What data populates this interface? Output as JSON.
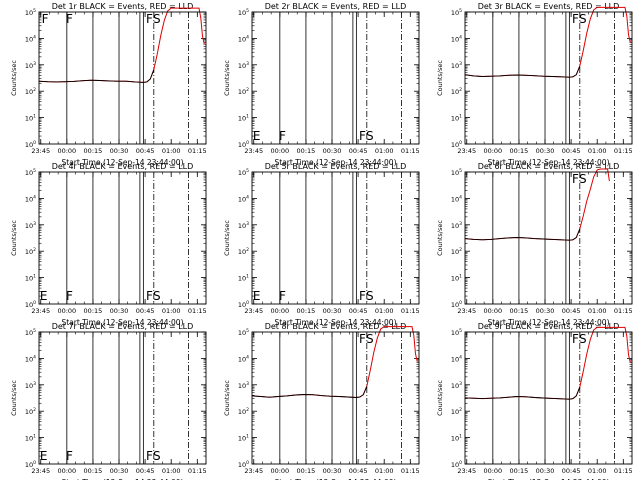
{
  "figure": {
    "xlabel": "Start Time (12-Sep-14 23:44:00)",
    "ylabel": "Counts/sec",
    "x_tick_labels": [
      "23:45",
      "00:00",
      "00:15",
      "00:30",
      "00:45",
      "01:00",
      "01:15"
    ],
    "event_colors": {
      "events": "#000000",
      "lld": "#dd0000"
    }
  },
  "chart_data": [
    {
      "type": "line",
      "title": "Det 1r BLACK = Events, RED = LLD",
      "x_unit": "minutes since 23:44:00",
      "xlim": [
        0,
        96
      ],
      "ylim_exp": [
        0,
        5
      ],
      "y_scale": "log",
      "y_tick_labels": [
        "10^0",
        "10^1",
        "10^2",
        "10^3",
        "10^4",
        "10^5"
      ],
      "has_data": true,
      "series": [
        {
          "name": "LLD",
          "x": [
            0,
            5,
            10,
            15,
            20,
            25,
            30,
            35,
            40,
            45,
            50,
            55,
            60,
            62,
            64,
            66,
            68,
            70,
            72,
            74,
            76,
            78,
            80,
            82,
            84,
            86,
            88,
            90,
            92,
            93,
            94,
            95
          ],
          "y": [
            240,
            230,
            225,
            230,
            235,
            250,
            260,
            255,
            245,
            240,
            240,
            225,
            215,
            225,
            290,
            650,
            2600,
            13000,
            48000,
            110000,
            140000,
            140000,
            140000,
            140000,
            140000,
            140000,
            140000,
            140000,
            140000,
            60000,
            12000,
            6000
          ]
        },
        {
          "name": "Events",
          "x": [
            0,
            5,
            10,
            15,
            20,
            25,
            30,
            35,
            40,
            45,
            50,
            55,
            60,
            62,
            64,
            66
          ],
          "y": [
            240,
            230,
            225,
            230,
            235,
            250,
            260,
            255,
            245,
            240,
            240,
            225,
            215,
            225,
            290,
            650
          ]
        }
      ],
      "markers": [
        {
          "label": "F",
          "x": 1.5
        },
        {
          "label": "F",
          "x": 15.5
        },
        {
          "label": "F",
          "x": 61.5
        },
        {
          "label": "S",
          "x": 65.5
        }
      ]
    },
    {
      "type": "line",
      "title": "Det 2r BLACK = Events, RED = LLD",
      "x_unit": "minutes since 23:44:00",
      "xlim": [
        0,
        96
      ],
      "ylim_exp": [
        0,
        5
      ],
      "y_scale": "log",
      "y_tick_labels": [
        "10^0",
        "10^1",
        "10^2",
        "10^3",
        "10^4",
        "10^5"
      ],
      "has_data": false,
      "series": [],
      "markers": [
        {
          "label": "E",
          "x": 0.5
        },
        {
          "label": "F",
          "x": 15.5
        },
        {
          "label": "F",
          "x": 61.5
        },
        {
          "label": "S",
          "x": 65.5
        }
      ]
    },
    {
      "type": "line",
      "title": "Det 3r BLACK = Events, RED = LLD",
      "x_unit": "minutes since 23:44:00",
      "xlim": [
        0,
        96
      ],
      "ylim_exp": [
        0,
        5
      ],
      "y_scale": "log",
      "y_tick_labels": [
        "10^0",
        "10^1",
        "10^2",
        "10^3",
        "10^4",
        "10^5"
      ],
      "has_data": true,
      "series": [
        {
          "name": "LLD",
          "x": [
            0,
            5,
            10,
            15,
            20,
            25,
            30,
            35,
            40,
            45,
            50,
            55,
            60,
            62,
            64,
            66,
            68,
            70,
            72,
            74,
            76,
            78,
            80,
            82,
            84,
            86,
            88,
            90,
            92,
            93,
            94,
            95
          ],
          "y": [
            420,
            380,
            360,
            370,
            380,
            400,
            410,
            400,
            385,
            370,
            360,
            350,
            340,
            350,
            420,
            900,
            3500,
            16000,
            55000,
            120000,
            150000,
            150000,
            150000,
            150000,
            150000,
            150000,
            150000,
            150000,
            150000,
            70000,
            14000,
            7000
          ]
        },
        {
          "name": "Events",
          "x": [
            0,
            5,
            10,
            15,
            20,
            25,
            30,
            35,
            40,
            45,
            50,
            55,
            60,
            62,
            64,
            66
          ],
          "y": [
            420,
            380,
            360,
            370,
            380,
            400,
            410,
            400,
            385,
            370,
            360,
            350,
            340,
            350,
            420,
            900
          ]
        }
      ],
      "markers": [
        {
          "label": "F",
          "x": 61.5
        },
        {
          "label": "S",
          "x": 65.5
        }
      ]
    },
    {
      "type": "line",
      "title": "Det 4r BLACK = Events, RED = LLD",
      "x_unit": "minutes since 23:44:00",
      "xlim": [
        0,
        96
      ],
      "ylim_exp": [
        0,
        5
      ],
      "y_scale": "log",
      "y_tick_labels": [
        "10^0",
        "10^1",
        "10^2",
        "10^3",
        "10^4",
        "10^5"
      ],
      "has_data": false,
      "series": [],
      "markers": [
        {
          "label": "E",
          "x": 0.5
        },
        {
          "label": "F",
          "x": 15.5
        },
        {
          "label": "F",
          "x": 61.5
        },
        {
          "label": "S",
          "x": 65.5
        }
      ]
    },
    {
      "type": "line",
      "title": "Det 5r BLACK = Events, RED = LLD",
      "x_unit": "minutes since 23:44:00",
      "xlim": [
        0,
        96
      ],
      "ylim_exp": [
        0,
        5
      ],
      "y_scale": "log",
      "y_tick_labels": [
        "10^0",
        "10^1",
        "10^2",
        "10^3",
        "10^4",
        "10^5"
      ],
      "has_data": false,
      "series": [],
      "markers": [
        {
          "label": "E",
          "x": 0.5
        },
        {
          "label": "F",
          "x": 15.5
        },
        {
          "label": "F",
          "x": 61.5
        },
        {
          "label": "S",
          "x": 65.5
        }
      ]
    },
    {
      "type": "line",
      "title": "Det 6r BLACK = Events, RED = LLD",
      "x_unit": "minutes since 23:44:00",
      "xlim": [
        0,
        96
      ],
      "ylim_exp": [
        0,
        5
      ],
      "y_scale": "log",
      "y_tick_labels": [
        "10^0",
        "10^1",
        "10^2",
        "10^3",
        "10^4",
        "10^5"
      ],
      "has_data": true,
      "series": [
        {
          "name": "LLD",
          "x": [
            0,
            5,
            10,
            15,
            20,
            25,
            30,
            35,
            40,
            45,
            50,
            55,
            60,
            62,
            64,
            66,
            68,
            70,
            72,
            74,
            76,
            78,
            80,
            82,
            83
          ],
          "y": [
            300,
            280,
            270,
            280,
            300,
            320,
            330,
            320,
            300,
            290,
            280,
            270,
            260,
            270,
            330,
            700,
            2200,
            8000,
            22000,
            65000,
            120000,
            130000,
            130000,
            130000,
            45000
          ]
        },
        {
          "name": "Events",
          "x": [
            0,
            5,
            10,
            15,
            20,
            25,
            30,
            35,
            40,
            45,
            50,
            55,
            60,
            62,
            64,
            66
          ],
          "y": [
            300,
            280,
            270,
            280,
            300,
            320,
            330,
            320,
            300,
            290,
            280,
            270,
            260,
            270,
            330,
            700
          ]
        }
      ],
      "markers": [
        {
          "label": "F",
          "x": 61.5
        },
        {
          "label": "S",
          "x": 65.5
        }
      ]
    },
    {
      "type": "line",
      "title": "Det 7r BLACK = Events, RED = LLD",
      "x_unit": "minutes since 23:44:00",
      "xlim": [
        0,
        96
      ],
      "ylim_exp": [
        0,
        5
      ],
      "y_scale": "log",
      "y_tick_labels": [
        "10^0",
        "10^1",
        "10^2",
        "10^3",
        "10^4",
        "10^5"
      ],
      "has_data": false,
      "series": [],
      "markers": [
        {
          "label": "E",
          "x": 0.5
        },
        {
          "label": "F",
          "x": 15.5
        },
        {
          "label": "F",
          "x": 61.5
        },
        {
          "label": "S",
          "x": 65.5
        }
      ]
    },
    {
      "type": "line",
      "title": "Det 8r BLACK = Events, RED = LLD",
      "x_unit": "minutes since 23:44:00",
      "xlim": [
        0,
        96
      ],
      "ylim_exp": [
        0,
        5
      ],
      "y_scale": "log",
      "y_tick_labels": [
        "10^0",
        "10^1",
        "10^2",
        "10^3",
        "10^4",
        "10^5"
      ],
      "has_data": true,
      "series": [
        {
          "name": "LLD",
          "x": [
            0,
            5,
            10,
            15,
            20,
            25,
            30,
            35,
            40,
            45,
            50,
            55,
            60,
            62,
            64,
            66,
            68,
            70,
            72,
            74,
            76,
            78,
            80,
            82,
            84,
            86,
            88,
            90,
            92,
            93,
            94,
            95
          ],
          "y": [
            380,
            360,
            340,
            360,
            380,
            410,
            430,
            420,
            390,
            370,
            360,
            345,
            330,
            345,
            420,
            880,
            3600,
            17000,
            58000,
            130000,
            160000,
            160000,
            160000,
            160000,
            160000,
            160000,
            160000,
            160000,
            160000,
            75000,
            15000,
            7500
          ]
        },
        {
          "name": "Events",
          "x": [
            0,
            5,
            10,
            15,
            20,
            25,
            30,
            35,
            40,
            45,
            50,
            55,
            60,
            62,
            64,
            66
          ],
          "y": [
            380,
            360,
            340,
            360,
            380,
            410,
            430,
            420,
            390,
            370,
            360,
            345,
            330,
            345,
            420,
            880
          ]
        }
      ],
      "markers": [
        {
          "label": "F",
          "x": 61.5
        },
        {
          "label": "S",
          "x": 65.5
        }
      ]
    },
    {
      "type": "line",
      "title": "Det 9r BLACK = Events, RED = LLD",
      "x_unit": "minutes since 23:44:00",
      "xlim": [
        0,
        96
      ],
      "ylim_exp": [
        0,
        5
      ],
      "y_scale": "log",
      "y_tick_labels": [
        "10^0",
        "10^1",
        "10^2",
        "10^3",
        "10^4",
        "10^5"
      ],
      "has_data": true,
      "series": [
        {
          "name": "LLD",
          "x": [
            0,
            5,
            10,
            15,
            20,
            25,
            30,
            35,
            40,
            45,
            50,
            55,
            60,
            62,
            64,
            66,
            68,
            70,
            72,
            74,
            76,
            78,
            80,
            82,
            84,
            86,
            88,
            90,
            92,
            93,
            94,
            95
          ],
          "y": [
            320,
            310,
            300,
            310,
            320,
            340,
            360,
            350,
            330,
            315,
            305,
            295,
            285,
            300,
            380,
            820,
            3300,
            15000,
            52000,
            120000,
            150000,
            150000,
            150000,
            150000,
            150000,
            150000,
            150000,
            150000,
            150000,
            70000,
            14000,
            7000
          ]
        },
        {
          "name": "Events",
          "x": [
            0,
            5,
            10,
            15,
            20,
            25,
            30,
            35,
            40,
            45,
            50,
            55,
            60,
            62,
            64,
            66
          ],
          "y": [
            320,
            310,
            300,
            310,
            320,
            340,
            360,
            350,
            330,
            315,
            305,
            295,
            285,
            300,
            380,
            820
          ]
        }
      ],
      "markers": [
        {
          "label": "F",
          "x": 61.5
        },
        {
          "label": "S",
          "x": 65.5
        }
      ]
    }
  ]
}
